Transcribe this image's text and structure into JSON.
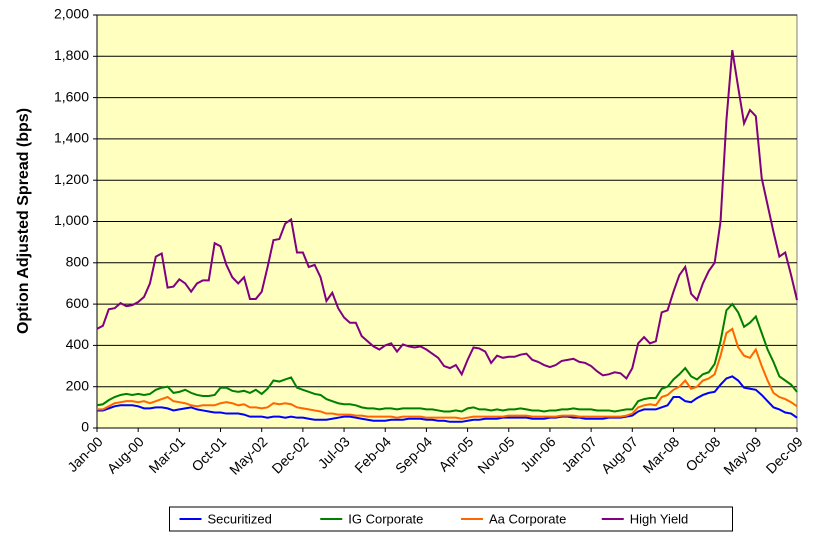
{
  "chart_data": {
    "type": "line",
    "y_label": "Option Adjusted Spread (bps)",
    "categories": [
      "Jan-00",
      null,
      null,
      null,
      null,
      null,
      null,
      "Aug-00",
      null,
      null,
      null,
      null,
      null,
      null,
      "Mar-01",
      null,
      null,
      null,
      null,
      null,
      null,
      "Oct-01",
      null,
      null,
      null,
      null,
      null,
      null,
      "May-02",
      null,
      null,
      null,
      null,
      null,
      null,
      "Dec-02",
      null,
      null,
      null,
      null,
      null,
      null,
      "Jul-03",
      null,
      null,
      null,
      null,
      null,
      null,
      "Feb-04",
      null,
      null,
      null,
      null,
      null,
      null,
      "Sep-04",
      null,
      null,
      null,
      null,
      null,
      null,
      "Apr-05",
      null,
      null,
      null,
      null,
      null,
      null,
      "Nov-05",
      null,
      null,
      null,
      null,
      null,
      null,
      "Jun-06",
      null,
      null,
      null,
      null,
      null,
      null,
      "Jan-07",
      null,
      null,
      null,
      null,
      null,
      null,
      "Aug-07",
      null,
      null,
      null,
      null,
      null,
      null,
      "Mar-08",
      null,
      null,
      null,
      null,
      null,
      null,
      "Oct-08",
      null,
      null,
      null,
      null,
      null,
      null,
      "May-09",
      null,
      null,
      null,
      null,
      null,
      null,
      "Dec-09"
    ],
    "series": [
      {
        "name": "Securitized",
        "color": "#0000ff",
        "values": [
          85,
          85,
          95,
          105,
          110,
          110,
          110,
          105,
          95,
          95,
          100,
          100,
          95,
          85,
          90,
          95,
          100,
          90,
          85,
          80,
          75,
          75,
          70,
          70,
          70,
          65,
          55,
          55,
          55,
          50,
          55,
          55,
          50,
          55,
          50,
          50,
          45,
          40,
          40,
          40,
          45,
          50,
          55,
          55,
          50,
          45,
          40,
          35,
          35,
          35,
          40,
          40,
          40,
          45,
          45,
          45,
          40,
          40,
          35,
          35,
          30,
          30,
          30,
          35,
          40,
          40,
          45,
          45,
          45,
          50,
          50,
          50,
          50,
          50,
          45,
          45,
          45,
          50,
          50,
          55,
          55,
          50,
          50,
          45,
          45,
          45,
          45,
          50,
          50,
          50,
          55,
          60,
          80,
          90,
          90,
          90,
          100,
          110,
          150,
          150,
          130,
          125,
          145,
          160,
          170,
          175,
          210,
          240,
          250,
          230,
          195,
          190,
          185,
          160,
          130,
          100,
          90,
          75,
          70,
          50
        ]
      },
      {
        "name": "IG Corporate",
        "color": "#008000",
        "values": [
          110,
          115,
          135,
          150,
          160,
          165,
          160,
          165,
          160,
          165,
          185,
          195,
          200,
          170,
          175,
          185,
          170,
          160,
          155,
          155,
          160,
          195,
          195,
          180,
          175,
          180,
          170,
          185,
          165,
          190,
          230,
          225,
          235,
          245,
          195,
          185,
          175,
          165,
          160,
          140,
          130,
          120,
          115,
          115,
          110,
          100,
          95,
          95,
          90,
          95,
          95,
          90,
          95,
          95,
          95,
          95,
          90,
          90,
          85,
          80,
          80,
          85,
          80,
          95,
          100,
          90,
          90,
          85,
          90,
          85,
          90,
          90,
          95,
          90,
          85,
          85,
          80,
          85,
          85,
          90,
          90,
          95,
          90,
          90,
          90,
          85,
          85,
          85,
          80,
          85,
          90,
          90,
          130,
          140,
          145,
          145,
          190,
          200,
          235,
          260,
          290,
          250,
          235,
          260,
          270,
          310,
          420,
          570,
          600,
          560,
          490,
          510,
          540,
          460,
          380,
          320,
          250,
          230,
          210,
          175
        ]
      },
      {
        "name": "Aa Corporate",
        "color": "#ff6600",
        "values": [
          90,
          90,
          105,
          120,
          125,
          130,
          130,
          125,
          130,
          120,
          130,
          140,
          150,
          130,
          125,
          120,
          110,
          105,
          110,
          110,
          110,
          120,
          125,
          120,
          110,
          115,
          100,
          100,
          95,
          100,
          120,
          115,
          120,
          115,
          100,
          95,
          90,
          85,
          80,
          70,
          70,
          65,
          65,
          65,
          60,
          60,
          55,
          55,
          55,
          55,
          55,
          50,
          55,
          55,
          55,
          55,
          50,
          50,
          50,
          50,
          50,
          50,
          45,
          50,
          55,
          55,
          55,
          55,
          55,
          55,
          60,
          60,
          60,
          60,
          55,
          55,
          55,
          55,
          55,
          60,
          60,
          60,
          55,
          55,
          55,
          55,
          55,
          55,
          55,
          55,
          60,
          70,
          100,
          110,
          115,
          110,
          150,
          160,
          185,
          200,
          230,
          190,
          200,
          230,
          240,
          260,
          350,
          460,
          480,
          390,
          350,
          340,
          380,
          300,
          230,
          170,
          150,
          140,
          125,
          105
        ]
      },
      {
        "name": "High Yield",
        "color": "#800080",
        "values": [
          480,
          495,
          575,
          580,
          605,
          590,
          595,
          610,
          635,
          700,
          830,
          845,
          680,
          685,
          720,
          700,
          660,
          700,
          715,
          715,
          895,
          880,
          790,
          730,
          700,
          730,
          625,
          625,
          660,
          780,
          910,
          915,
          990,
          1010,
          850,
          850,
          780,
          790,
          730,
          615,
          655,
          580,
          535,
          510,
          510,
          445,
          420,
          395,
          380,
          400,
          410,
          370,
          405,
          395,
          390,
          395,
          380,
          360,
          340,
          300,
          290,
          305,
          260,
          330,
          390,
          385,
          370,
          315,
          350,
          340,
          345,
          345,
          355,
          360,
          330,
          320,
          305,
          295,
          305,
          325,
          330,
          335,
          320,
          315,
          300,
          275,
          255,
          260,
          270,
          265,
          240,
          290,
          410,
          440,
          410,
          420,
          560,
          570,
          660,
          740,
          780,
          650,
          620,
          700,
          760,
          800,
          1000,
          1490,
          1830,
          1650,
          1475,
          1540,
          1510,
          1210,
          1080,
          950,
          830,
          850,
          740,
          620
        ]
      }
    ],
    "ylim": [
      0,
      2000
    ],
    "yticks": [
      0,
      200,
      400,
      600,
      800,
      {
        "value": 1000,
        "label": "1,000"
      },
      {
        "value": 1200,
        "label": "1,200"
      },
      {
        "value": 1400,
        "label": "1,400"
      },
      {
        "value": 1600,
        "label": "1,600"
      },
      {
        "value": 1800,
        "label": "1,800"
      },
      {
        "value": 2000,
        "label": "2,000"
      }
    ],
    "grid": true,
    "legend": "bottom"
  }
}
